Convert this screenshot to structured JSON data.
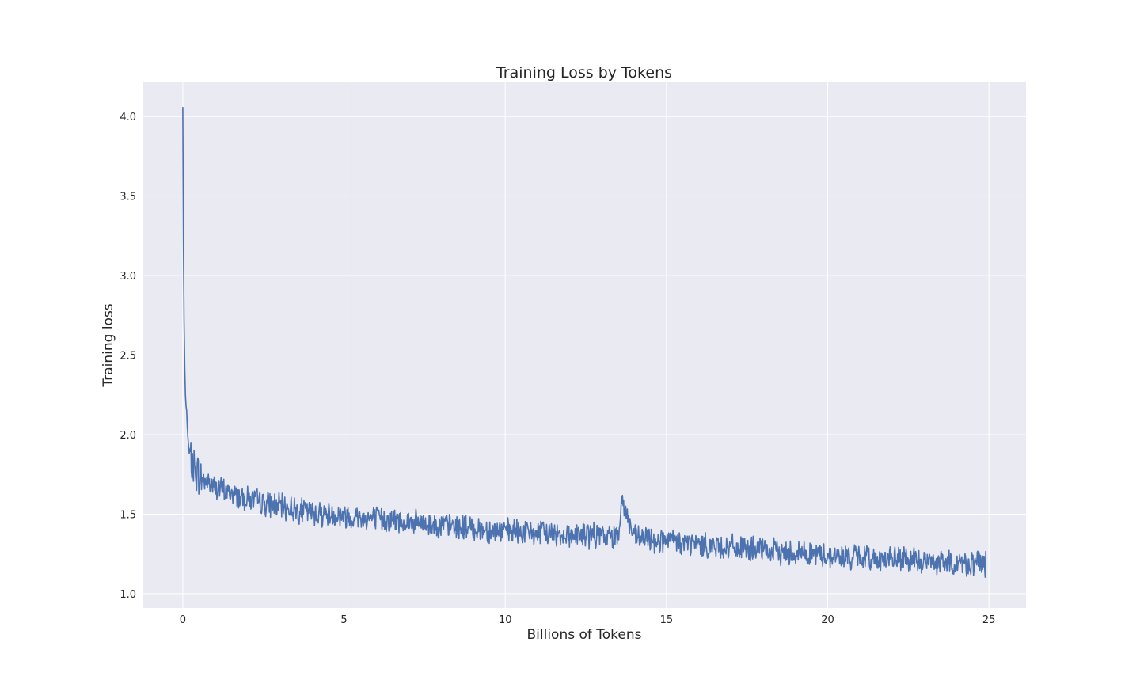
{
  "chart_data": {
    "type": "line",
    "title": "Training Loss by Tokens",
    "xlabel": "Billions of Tokens",
    "ylabel": "Training loss",
    "xlim": [
      -1.25,
      26.15
    ],
    "ylim": [
      0.91,
      4.22
    ],
    "x_ticks": [
      0,
      5,
      10,
      15,
      20,
      25
    ],
    "x_tick_labels": [
      "0",
      "5",
      "10",
      "15",
      "20",
      "25"
    ],
    "y_ticks": [
      1.0,
      1.5,
      2.0,
      2.5,
      3.0,
      3.5,
      4.0
    ],
    "y_tick_labels": [
      "1.0",
      "1.5",
      "2.0",
      "2.5",
      "3.0",
      "3.5",
      "4.0"
    ],
    "grid": true,
    "series": [
      {
        "color": "#4c72b0",
        "x": [
          0.0,
          0.02,
          0.04,
          0.06,
          0.08,
          0.1,
          0.12,
          0.14,
          0.16,
          0.18,
          0.2,
          0.25,
          0.3,
          0.4,
          0.5,
          0.6,
          0.8,
          1.0,
          1.25,
          1.5,
          1.75,
          2.0,
          2.5,
          3.0,
          3.5,
          4.0,
          4.5,
          5.0,
          5.5,
          6.0,
          6.5,
          7.0,
          7.5,
          8.0,
          8.5,
          9.0,
          9.5,
          10.0,
          10.5,
          11.0,
          11.5,
          12.0,
          12.5,
          13.0,
          13.5,
          13.6,
          14.0,
          14.5,
          15.0,
          15.5,
          16.0,
          16.5,
          17.0,
          17.5,
          18.0,
          18.5,
          19.0,
          19.5,
          20.0,
          20.5,
          21.0,
          21.5,
          22.0,
          22.5,
          23.0,
          23.5,
          24.0,
          24.5,
          24.9
        ],
        "y": [
          4.06,
          3.2,
          2.72,
          2.42,
          2.25,
          2.18,
          2.15,
          2.05,
          1.98,
          1.93,
          1.88,
          1.84,
          1.8,
          1.77,
          1.74,
          1.72,
          1.7,
          1.67,
          1.65,
          1.63,
          1.61,
          1.6,
          1.57,
          1.55,
          1.53,
          1.51,
          1.5,
          1.49,
          1.48,
          1.47,
          1.46,
          1.45,
          1.44,
          1.43,
          1.42,
          1.41,
          1.4,
          1.39,
          1.39,
          1.38,
          1.38,
          1.37,
          1.37,
          1.36,
          1.36,
          1.6,
          1.35,
          1.34,
          1.33,
          1.32,
          1.31,
          1.3,
          1.29,
          1.28,
          1.27,
          1.26,
          1.26,
          1.25,
          1.24,
          1.23,
          1.23,
          1.22,
          1.22,
          1.21,
          1.2,
          1.2,
          1.19,
          1.19,
          1.19
        ],
        "noise_amplitude": 0.07,
        "points_shown": 1500
      }
    ]
  }
}
